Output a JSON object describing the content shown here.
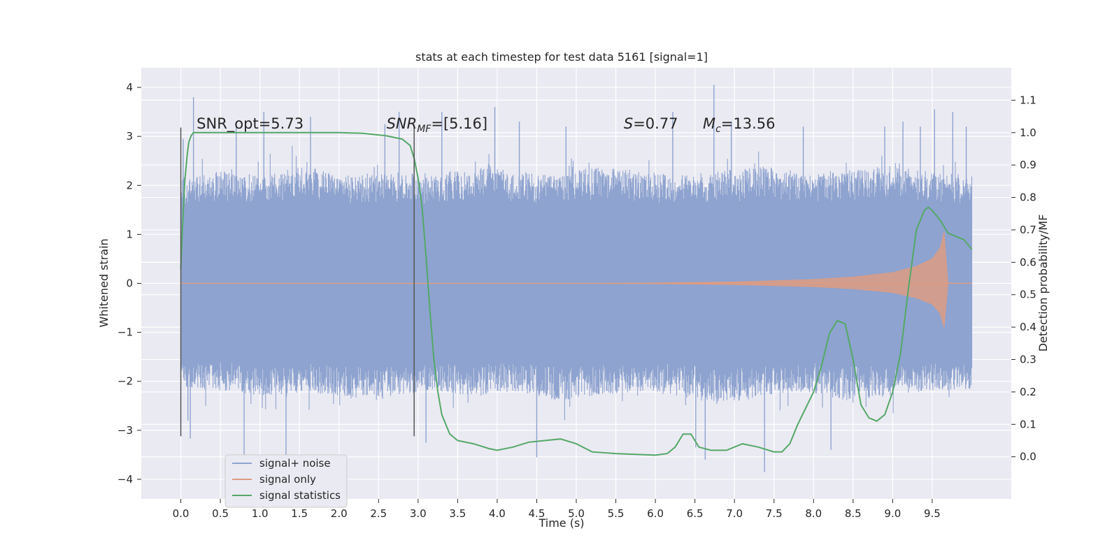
{
  "chart_data": {
    "type": "line",
    "title": "stats at each timestep for test data 5161 [signal=1]",
    "xlabel": "Time (s)",
    "ylabel": "Whitened strain",
    "y2label": "Detection probability/MF",
    "xlim": [
      -0.5,
      10.5
    ],
    "ylim": [
      -4.4,
      4.4
    ],
    "y2lim": [
      -0.13,
      1.2
    ],
    "x_ticks": [
      0.0,
      0.5,
      1.0,
      1.5,
      2.0,
      2.5,
      3.0,
      3.5,
      4.0,
      4.5,
      5.0,
      5.5,
      6.0,
      6.5,
      7.0,
      7.5,
      8.0,
      8.5,
      9.0,
      9.5
    ],
    "x_tick_labels": [
      "0.0",
      "0.5",
      "1.0",
      "1.5",
      "2.0",
      "2.5",
      "3.0",
      "3.5",
      "4.0",
      "4.5",
      "5.0",
      "5.5",
      "6.0",
      "6.5",
      "7.0",
      "7.5",
      "8.0",
      "8.5",
      "9.0",
      "9.5"
    ],
    "y_ticks": [
      4,
      3,
      2,
      1,
      0,
      -1,
      -2,
      -3,
      -4
    ],
    "y_tick_labels": [
      "4",
      "3",
      "2",
      "1",
      "0",
      "−1",
      "−2",
      "−3",
      "−4"
    ],
    "y2_ticks": [
      1.1,
      1.0,
      0.9,
      0.8,
      0.7,
      0.6,
      0.5,
      0.4,
      0.3,
      0.2,
      0.1,
      0.0
    ],
    "y2_tick_labels": [
      "1.1",
      "1.0",
      "0.9",
      "0.8",
      "0.7",
      "0.6",
      "0.5",
      "0.4",
      "0.3",
      "0.2",
      "0.1",
      "0.0"
    ],
    "grid": true,
    "legend_position": "bottom-left",
    "annotations": [
      {
        "html": "SNR_opt=5.73",
        "x": 0.2
      },
      {
        "html": "<tspan font-style=\"italic\">SNR</tspan><tspan font-style=\"italic\" font-size=\"14\" dy=\"5\">MF</tspan><tspan dy=\"-5\">=[5.16]</tspan>",
        "x": 2.6
      },
      {
        "html": "<tspan font-style=\"italic\">S</tspan>=0.77",
        "x": 5.6
      },
      {
        "html": "<tspan font-style=\"italic\">M</tspan><tspan font-style=\"italic\" font-size=\"14\" dy=\"5\">c</tspan><tspan dy=\"-5\">=13.56</tspan>",
        "x": 6.6
      }
    ],
    "vertical_markers": [
      0.0,
      2.95
    ],
    "series": [
      {
        "name": "signal+ noise",
        "color": "#8ea3cf",
        "axis": "left",
        "x_range": [
          0.0,
          10.0
        ],
        "band_inner": [
          -1.3,
          1.3
        ],
        "envelope_upper": [
          2.1,
          2.3,
          2.2,
          2.4,
          2.2,
          2.3,
          2.2,
          2.4,
          2.3,
          2.2,
          2.4,
          2.3,
          2.2,
          2.3,
          2.4,
          2.2,
          2.3,
          2.4,
          2.3,
          2.2
        ],
        "envelope_lower": [
          -2.1,
          -2.2,
          -2.3,
          -2.2,
          -2.4,
          -2.3,
          -2.2,
          -2.3,
          -2.2,
          -2.4,
          -2.3,
          -2.2,
          -2.3,
          -2.5,
          -2.3,
          -2.2,
          -2.4,
          -2.3,
          -2.2,
          -2.2
        ],
        "spikes": [
          [
            0.03,
            2.95
          ],
          [
            0.09,
            -2.8
          ],
          [
            0.16,
            3.8
          ],
          [
            0.12,
            -3.17
          ],
          [
            0.7,
            3.2
          ],
          [
            0.8,
            -3.5
          ],
          [
            1.05,
            3.5
          ],
          [
            1.33,
            -3.6
          ],
          [
            1.64,
            3.4
          ],
          [
            2.58,
            3.25
          ],
          [
            2.76,
            3.5
          ],
          [
            3.1,
            -3.25
          ],
          [
            3.3,
            3.5
          ],
          [
            3.97,
            3.6
          ],
          [
            4.28,
            3.3
          ],
          [
            4.5,
            -3.55
          ],
          [
            4.87,
            3.2
          ],
          [
            6.22,
            3.5
          ],
          [
            6.51,
            -3.35
          ],
          [
            6.63,
            -3.6
          ],
          [
            6.74,
            4.05
          ],
          [
            6.96,
            3.3
          ],
          [
            7.38,
            -3.85
          ],
          [
            7.87,
            3.2
          ],
          [
            8.22,
            -3.4
          ],
          [
            8.9,
            3.2
          ],
          [
            9.13,
            3.3
          ],
          [
            9.35,
            3.2
          ],
          [
            9.53,
            3.55
          ],
          [
            9.76,
            3.5
          ],
          [
            9.93,
            3.2
          ]
        ]
      },
      {
        "name": "signal only",
        "color": "#dd9c83",
        "axis": "left",
        "x_range": [
          0.0,
          10.0
        ],
        "envelope": [
          [
            0.0,
            0.0
          ],
          [
            5.0,
            0.0
          ],
          [
            6.0,
            0.01
          ],
          [
            7.0,
            0.03
          ],
          [
            8.0,
            0.08
          ],
          [
            8.5,
            0.13
          ],
          [
            9.0,
            0.22
          ],
          [
            9.3,
            0.35
          ],
          [
            9.5,
            0.5
          ],
          [
            9.6,
            0.72
          ],
          [
            9.65,
            1.05
          ],
          [
            9.7,
            0.0
          ],
          [
            10.0,
            0.0
          ]
        ]
      },
      {
        "name": "signal statistics",
        "color": "#55a868",
        "axis": "right",
        "x": [
          0.0,
          0.02,
          0.05,
          0.08,
          0.1,
          0.13,
          0.16,
          0.2,
          0.5,
          1.0,
          1.5,
          2.0,
          2.3,
          2.6,
          2.8,
          2.9,
          2.95,
          3.0,
          3.05,
          3.1,
          3.15,
          3.2,
          3.25,
          3.3,
          3.4,
          3.5,
          3.7,
          3.9,
          4.0,
          4.2,
          4.4,
          4.6,
          4.8,
          5.0,
          5.2,
          5.5,
          6.0,
          6.15,
          6.25,
          6.35,
          6.45,
          6.55,
          6.7,
          6.9,
          7.1,
          7.3,
          7.5,
          7.6,
          7.7,
          7.8,
          7.9,
          8.0,
          8.1,
          8.2,
          8.3,
          8.4,
          8.5,
          8.6,
          8.7,
          8.8,
          8.9,
          9.0,
          9.1,
          9.2,
          9.3,
          9.4,
          9.45,
          9.5,
          9.6,
          9.7,
          9.8,
          9.9,
          10.0
        ],
        "values": [
          0.58,
          0.7,
          0.85,
          0.93,
          0.97,
          0.99,
          1.0,
          1.0,
          1.0,
          1.0,
          1.0,
          1.0,
          0.998,
          0.99,
          0.98,
          0.96,
          0.92,
          0.86,
          0.77,
          0.62,
          0.45,
          0.3,
          0.2,
          0.13,
          0.07,
          0.05,
          0.04,
          0.025,
          0.02,
          0.03,
          0.045,
          0.05,
          0.055,
          0.04,
          0.015,
          0.01,
          0.005,
          0.01,
          0.03,
          0.07,
          0.07,
          0.03,
          0.02,
          0.02,
          0.04,
          0.03,
          0.015,
          0.015,
          0.04,
          0.1,
          0.15,
          0.2,
          0.28,
          0.38,
          0.42,
          0.41,
          0.3,
          0.16,
          0.12,
          0.11,
          0.13,
          0.2,
          0.32,
          0.52,
          0.7,
          0.76,
          0.77,
          0.76,
          0.73,
          0.69,
          0.68,
          0.67,
          0.64
        ]
      }
    ]
  }
}
